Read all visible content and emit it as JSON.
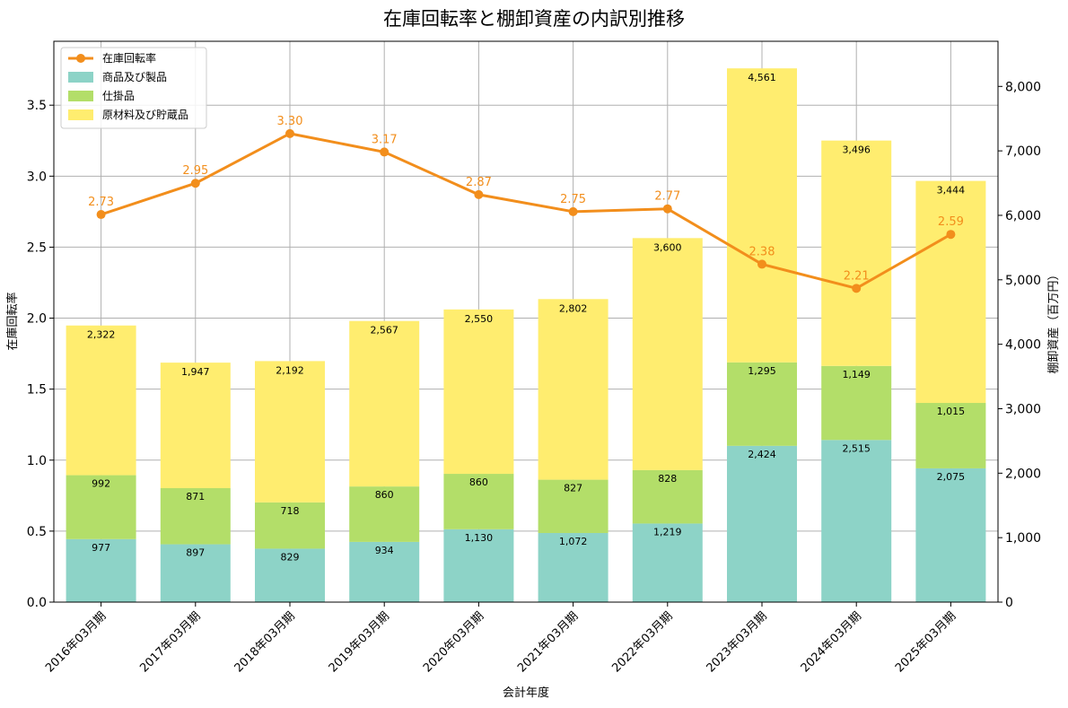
{
  "chart_data": {
    "type": "bar",
    "title": "在庫回転率と棚卸資産の内訳別推移",
    "xlabel": "会計年度",
    "ylabel_left": "在庫回転率",
    "ylabel_right": "棚卸資産（百万円）",
    "categories": [
      "2016年03月期",
      "2017年03月期",
      "2018年03月期",
      "2019年03月期",
      "2020年03月期",
      "2021年03月期",
      "2022年03月期",
      "2023年03月期",
      "2024年03月期",
      "2025年03月期"
    ],
    "stacked": true,
    "series": [
      {
        "name": "商品及び製品",
        "color": "#8dd3c7",
        "axis": "right",
        "values": [
          977,
          897,
          829,
          934,
          1130,
          1072,
          1219,
          2424,
          2515,
          2075
        ],
        "labels": [
          "977",
          "897",
          "829",
          "934",
          "1,130",
          "1,072",
          "1,219",
          "2,424",
          "2,515",
          "2,075"
        ]
      },
      {
        "name": "仕掛品",
        "color": "#b3de69",
        "axis": "right",
        "values": [
          992,
          871,
          718,
          860,
          860,
          827,
          828,
          1295,
          1149,
          1015
        ],
        "labels": [
          "992",
          "871",
          "718",
          "860",
          "860",
          "827",
          "828",
          "1,295",
          "1,149",
          "1,015"
        ]
      },
      {
        "name": "原材料及び貯蔵品",
        "color": "#ffed6f",
        "axis": "right",
        "values": [
          2322,
          1947,
          2192,
          2567,
          2550,
          2802,
          3600,
          4561,
          3496,
          3444
        ],
        "labels": [
          "2,322",
          "1,947",
          "2,192",
          "2,567",
          "2,550",
          "2,802",
          "3,600",
          "4,561",
          "3,496",
          "3,444"
        ]
      }
    ],
    "line": {
      "name": "在庫回転率",
      "type": "line",
      "color": "#f28e1c",
      "axis": "left",
      "values": [
        2.73,
        2.95,
        3.3,
        3.17,
        2.87,
        2.75,
        2.77,
        2.38,
        2.21,
        2.59
      ],
      "labels": [
        "2.73",
        "2.95",
        "3.30",
        "3.17",
        "2.87",
        "2.75",
        "2.77",
        "2.38",
        "2.21",
        "2.59"
      ]
    },
    "left_axis": {
      "ylim": [
        0,
        3.95
      ],
      "ticks": [
        0,
        0.5,
        1.0,
        1.5,
        2.0,
        2.5,
        3.0,
        3.5
      ],
      "tick_labels": [
        "0.0",
        "0.5",
        "1.0",
        "1.5",
        "2.0",
        "2.5",
        "3.0",
        "3.5"
      ]
    },
    "right_axis": {
      "ylim": [
        0,
        8700
      ],
      "ticks": [
        0,
        1000,
        2000,
        3000,
        4000,
        5000,
        6000,
        7000,
        8000
      ],
      "tick_labels": [
        "0",
        "1,000",
        "2,000",
        "3,000",
        "4,000",
        "5,000",
        "6,000",
        "7,000",
        "8,000"
      ]
    },
    "grid": true,
    "legend_position": "top-left"
  }
}
